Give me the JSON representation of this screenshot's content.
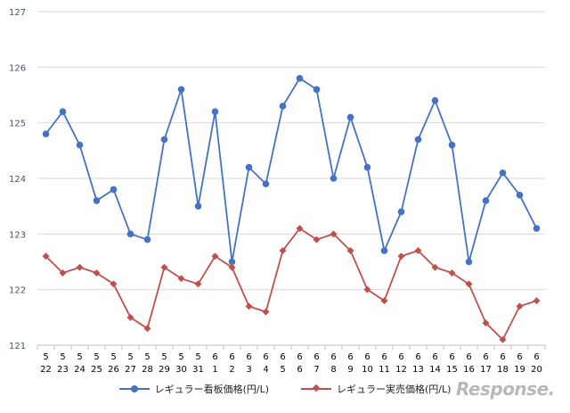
{
  "chart_data": {
    "type": "line",
    "title": "",
    "xlabel": "",
    "ylabel": "",
    "ylim": [
      121,
      127
    ],
    "yticks": [
      121,
      122,
      123,
      124,
      125,
      126,
      127
    ],
    "grid": "horizontal",
    "legend_position": "bottom",
    "categories": [
      {
        "month": "5",
        "day": "22"
      },
      {
        "month": "5",
        "day": "23"
      },
      {
        "month": "5",
        "day": "24"
      },
      {
        "month": "5",
        "day": "25"
      },
      {
        "month": "5",
        "day": "26"
      },
      {
        "month": "5",
        "day": "27"
      },
      {
        "month": "5",
        "day": "28"
      },
      {
        "month": "5",
        "day": "29"
      },
      {
        "month": "5",
        "day": "30"
      },
      {
        "month": "5",
        "day": "31"
      },
      {
        "month": "6",
        "day": "1"
      },
      {
        "month": "6",
        "day": "2"
      },
      {
        "month": "6",
        "day": "3"
      },
      {
        "month": "6",
        "day": "4"
      },
      {
        "month": "6",
        "day": "5"
      },
      {
        "month": "6",
        "day": "6"
      },
      {
        "month": "6",
        "day": "7"
      },
      {
        "month": "6",
        "day": "8"
      },
      {
        "month": "6",
        "day": "9"
      },
      {
        "month": "6",
        "day": "10"
      },
      {
        "month": "6",
        "day": "11"
      },
      {
        "month": "6",
        "day": "12"
      },
      {
        "month": "6",
        "day": "13"
      },
      {
        "month": "6",
        "day": "14"
      },
      {
        "month": "6",
        "day": "15"
      },
      {
        "month": "6",
        "day": "16"
      },
      {
        "month": "6",
        "day": "17"
      },
      {
        "month": "6",
        "day": "18"
      },
      {
        "month": "6",
        "day": "19"
      },
      {
        "month": "6",
        "day": "20"
      }
    ],
    "series": [
      {
        "name": "レギュラー看板価格(円/L)",
        "color": "#4472c4",
        "marker": "circle",
        "values": [
          124.8,
          125.2,
          124.6,
          123.6,
          123.8,
          123.0,
          122.9,
          124.7,
          125.6,
          123.5,
          125.2,
          122.5,
          124.2,
          123.9,
          125.3,
          125.8,
          125.6,
          124.0,
          125.1,
          124.2,
          122.7,
          123.4,
          124.7,
          125.4,
          124.6,
          122.5,
          123.6,
          124.1,
          123.7,
          123.1
        ]
      },
      {
        "name": "レギュラー実売価格(円/L)",
        "color": "#c0504d",
        "marker": "diamond",
        "values": [
          122.6,
          122.3,
          122.4,
          122.3,
          122.1,
          121.5,
          121.3,
          122.4,
          122.2,
          122.1,
          122.6,
          122.4,
          121.7,
          121.6,
          122.7,
          123.1,
          122.9,
          123.0,
          122.7,
          122.0,
          121.8,
          122.6,
          122.7,
          122.4,
          122.3,
          122.1,
          121.4,
          121.1,
          121.7,
          121.8
        ]
      }
    ]
  },
  "watermark": "Response."
}
